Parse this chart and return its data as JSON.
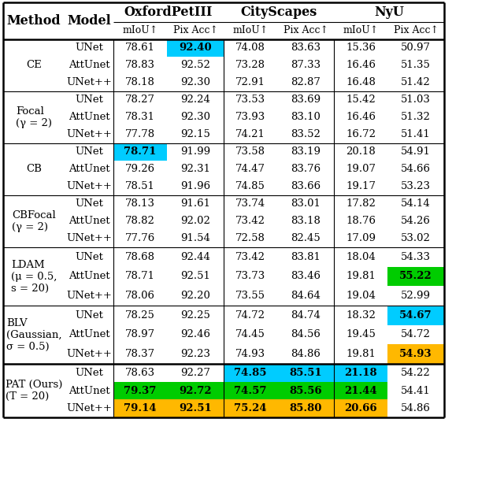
{
  "methods": [
    "CE",
    "Focal\n(γ = 2)",
    "CB",
    "CBFocal\n(γ = 2)",
    "LDAM\n(μ = 0.5,\ns = 20)",
    "BLV\n(Gaussian,\nσ = 0.5)",
    "PAT (Ours)\n(T = 20)"
  ],
  "models": [
    "UNet",
    "AttUnet",
    "UNet++"
  ],
  "datasets": [
    "OxfordPetIII",
    "CityScapes",
    "NyU"
  ],
  "col_headers": [
    "mIoU↑",
    "Pix Acc↑",
    "mIoU↑",
    "Pix Acc↑",
    "mIoU↑",
    "Pix Acc↑"
  ],
  "data": [
    [
      [
        78.61,
        92.4,
        74.08,
        83.63,
        15.36,
        50.97
      ],
      [
        78.83,
        92.52,
        73.28,
        87.33,
        16.46,
        51.35
      ],
      [
        78.18,
        92.3,
        72.91,
        82.87,
        16.48,
        51.42
      ]
    ],
    [
      [
        78.27,
        92.24,
        73.53,
        83.69,
        15.42,
        51.03
      ],
      [
        78.31,
        92.3,
        73.93,
        83.1,
        16.46,
        51.32
      ],
      [
        77.78,
        92.15,
        74.21,
        83.52,
        16.72,
        51.41
      ]
    ],
    [
      [
        78.71,
        91.99,
        73.58,
        83.19,
        20.18,
        54.91
      ],
      [
        79.26,
        92.31,
        74.47,
        83.76,
        19.07,
        54.66
      ],
      [
        78.51,
        91.96,
        74.85,
        83.66,
        19.17,
        53.23
      ]
    ],
    [
      [
        78.13,
        91.61,
        73.74,
        83.01,
        17.82,
        54.14
      ],
      [
        78.82,
        92.02,
        73.42,
        83.18,
        18.76,
        54.26
      ],
      [
        77.76,
        91.54,
        72.58,
        82.45,
        17.09,
        53.02
      ]
    ],
    [
      [
        78.68,
        92.44,
        73.42,
        83.81,
        18.04,
        54.33
      ],
      [
        78.71,
        92.51,
        73.73,
        83.46,
        19.81,
        55.22
      ],
      [
        78.06,
        92.2,
        73.55,
        84.64,
        19.04,
        52.99
      ]
    ],
    [
      [
        78.25,
        92.25,
        74.72,
        84.74,
        18.32,
        54.67
      ],
      [
        78.97,
        92.46,
        74.45,
        84.56,
        19.45,
        54.72
      ],
      [
        78.37,
        92.23,
        74.93,
        84.86,
        19.81,
        54.93
      ]
    ],
    [
      [
        78.63,
        92.27,
        74.85,
        85.51,
        21.18,
        54.22
      ],
      [
        79.37,
        92.72,
        74.57,
        85.56,
        21.44,
        54.41
      ],
      [
        79.14,
        92.51,
        75.24,
        85.8,
        20.66,
        54.86
      ]
    ]
  ],
  "highlights": [
    {
      "method": 0,
      "model": 0,
      "col": 1,
      "color": "#00CCFF"
    },
    {
      "method": 2,
      "model": 0,
      "col": 0,
      "color": "#00CCFF"
    },
    {
      "method": 4,
      "model": 1,
      "col": 5,
      "color": "#00CC00"
    },
    {
      "method": 5,
      "model": 0,
      "col": 5,
      "color": "#00CCFF"
    },
    {
      "method": 5,
      "model": 2,
      "col": 5,
      "color": "#FFB800"
    },
    {
      "method": 6,
      "model": 0,
      "col": 2,
      "color": "#00CCFF"
    },
    {
      "method": 6,
      "model": 0,
      "col": 3,
      "color": "#00CCFF"
    },
    {
      "method": 6,
      "model": 0,
      "col": 4,
      "color": "#00CCFF"
    },
    {
      "method": 6,
      "model": 1,
      "col": 0,
      "color": "#00CC00"
    },
    {
      "method": 6,
      "model": 1,
      "col": 1,
      "color": "#00CC00"
    },
    {
      "method": 6,
      "model": 1,
      "col": 2,
      "color": "#00CC00"
    },
    {
      "method": 6,
      "model": 1,
      "col": 3,
      "color": "#00CC00"
    },
    {
      "method": 6,
      "model": 1,
      "col": 4,
      "color": "#00CC00"
    },
    {
      "method": 6,
      "model": 2,
      "col": 0,
      "color": "#FFB800"
    },
    {
      "method": 6,
      "model": 2,
      "col": 1,
      "color": "#FFB800"
    },
    {
      "method": 6,
      "model": 2,
      "col": 2,
      "color": "#FFB800"
    },
    {
      "method": 6,
      "model": 2,
      "col": 3,
      "color": "#FFB800"
    },
    {
      "method": 6,
      "model": 2,
      "col": 4,
      "color": "#FFB800"
    }
  ],
  "figsize": [
    6.4,
    6.26
  ],
  "dpi": 100
}
